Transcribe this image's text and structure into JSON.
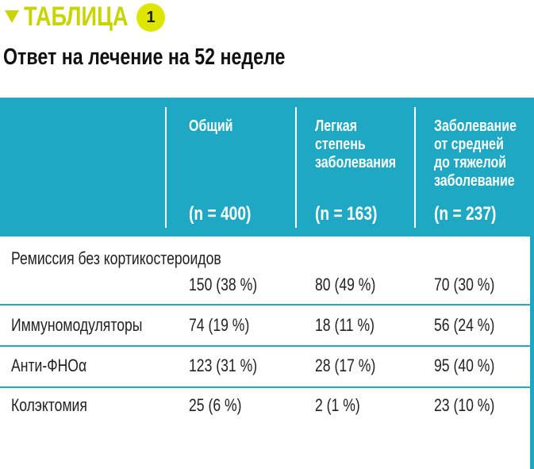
{
  "header": {
    "label": "ТАБЛИЦА",
    "badge": "1",
    "title": "Ответ на лечение на 52 неделе"
  },
  "table": {
    "columns": [
      {
        "name_lines": [
          "Общий"
        ],
        "n": "(n = 400)"
      },
      {
        "name_lines": [
          "Легкая",
          "степень",
          "заболевания"
        ],
        "n": "(n = 163)"
      },
      {
        "name_lines": [
          "Заболевание",
          "от средней",
          "до тяжелой",
          "заболевание"
        ],
        "n": "(n = 237)"
      }
    ],
    "rows": [
      {
        "label": "Ремиссия без кортикостероидов",
        "values": [
          "150 (38 %)",
          "80 (49 %)",
          "70 (30 %)"
        ]
      },
      {
        "label": "Иммуномодуляторы",
        "values": [
          "74 (19 %)",
          "18 (11 %)",
          "56 (24 %)"
        ]
      },
      {
        "label": "Анти-ФНОα",
        "values": [
          "123 (31 %)",
          "28 (17 %)",
          "95 (40 %)"
        ]
      },
      {
        "label": "Колэктомия",
        "values": [
          "25 (6 %)",
          "2 (1 %)",
          "23 (10 %)"
        ]
      }
    ]
  }
}
